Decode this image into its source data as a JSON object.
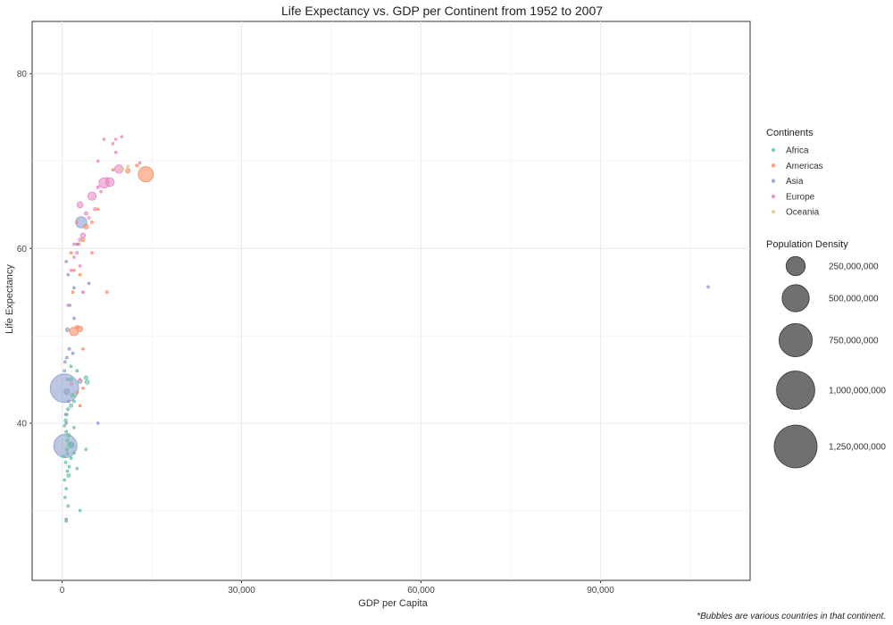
{
  "chart_data": {
    "type": "scatter",
    "title": "Life Expectancy vs. GDP per Continent from 1952 to 2007",
    "xlabel": "GDP per Capita",
    "ylabel": "Life Expectancy",
    "caption": "*Bubbles are various countries in that continent.",
    "xlim": [
      -5000,
      115000
    ],
    "ylim": [
      22,
      86
    ],
    "x_ticks": [
      0,
      30000,
      60000,
      90000
    ],
    "x_tick_labels": [
      "0",
      "30,000",
      "60,000",
      "90,000"
    ],
    "y_ticks": [
      40,
      60,
      80
    ],
    "y_tick_labels": [
      "40",
      "60",
      "80"
    ],
    "grid": true,
    "legend_position": "right",
    "color_legend": {
      "title": "Continents",
      "entries": [
        {
          "label": "Africa",
          "color": "#66c2a5"
        },
        {
          "label": "Americas",
          "color": "#fc8d62"
        },
        {
          "label": "Asia",
          "color": "#8da0cb"
        },
        {
          "label": "Europe",
          "color": "#e78ac3"
        },
        {
          "label": "Oceania",
          "color": "#e5c494"
        }
      ]
    },
    "size_legend": {
      "title": "Population Density",
      "entries": [
        {
          "label": "250,000,000",
          "value": 250000000
        },
        {
          "label": "500,000,000",
          "value": 500000000
        },
        {
          "label": "750,000,000",
          "value": 750000000
        },
        {
          "label": "1,000,000,000",
          "value": 1000000000
        },
        {
          "label": "1,250,000,000",
          "value": 1250000000
        }
      ]
    },
    "series": [
      {
        "name": "Africa",
        "color": "#66c2a5",
        "points": [
          [
            1500,
            45.0,
            8000000
          ],
          [
            4000,
            45.2,
            9000000
          ],
          [
            4200,
            44.7,
            12000000
          ],
          [
            1800,
            43.2,
            10000000
          ],
          [
            2000,
            42.5,
            5000000
          ],
          [
            1500,
            42.0,
            8000000
          ],
          [
            1000,
            41.6,
            6000000
          ],
          [
            800,
            41.0,
            4000000
          ],
          [
            600,
            40.3,
            7000000
          ],
          [
            400,
            39.7,
            3000000
          ],
          [
            700,
            39.0,
            5000000
          ],
          [
            1100,
            38.6,
            9000000
          ],
          [
            900,
            38.0,
            6000000
          ],
          [
            1300,
            37.5,
            12000000
          ],
          [
            800,
            37.0,
            7000000
          ],
          [
            2000,
            36.6,
            5000000
          ],
          [
            1500,
            36.0,
            4000000
          ],
          [
            600,
            35.5,
            3000000
          ],
          [
            900,
            34.5,
            4000000
          ],
          [
            1100,
            34.0,
            8000000
          ],
          [
            400,
            33.5,
            3000000
          ],
          [
            700,
            32.5,
            3000000
          ],
          [
            500,
            31.5,
            2000000
          ],
          [
            1000,
            30.5,
            2000000
          ],
          [
            3000,
            30.0,
            3000000
          ],
          [
            700,
            28.8,
            5000000
          ],
          [
            1500,
            46.5,
            4000000
          ],
          [
            2500,
            46.0,
            5000000
          ],
          [
            1200,
            35.0,
            2000000
          ],
          [
            2500,
            34.8,
            2000000
          ],
          [
            4000,
            37.0,
            2000000
          ],
          [
            2000,
            39.5,
            3000000
          ],
          [
            300,
            36.2,
            2000000
          ]
        ]
      },
      {
        "name": "Americas",
        "color": "#fc8d62",
        "points": [
          [
            14000,
            68.5,
            157000000
          ],
          [
            11000,
            68.9,
            14000000
          ],
          [
            12500,
            69.5,
            5000000
          ],
          [
            8500,
            69.0,
            4000000
          ],
          [
            5000,
            63.0,
            3000000
          ],
          [
            4000,
            62.5,
            15000000
          ],
          [
            3500,
            61.0,
            9000000
          ],
          [
            2800,
            60.5,
            5000000
          ],
          [
            1500,
            59.5,
            3000000
          ],
          [
            5000,
            59.5,
            3000000
          ],
          [
            3000,
            57.0,
            2000000
          ],
          [
            7500,
            55.0,
            2000000
          ],
          [
            3500,
            55.0,
            2000000
          ],
          [
            2500,
            51.0,
            8000000
          ],
          [
            3000,
            50.8,
            20000000
          ],
          [
            2000,
            50.5,
            52000000
          ],
          [
            3500,
            48.5,
            2000000
          ],
          [
            3500,
            44.0,
            2000000
          ],
          [
            2500,
            43.5,
            2000000
          ],
          [
            3000,
            42.0,
            2000000
          ],
          [
            6000,
            64.5,
            2000000
          ],
          [
            2000,
            57.5,
            2000000
          ],
          [
            1800,
            55.0,
            1500000
          ]
        ]
      },
      {
        "name": "Asia",
        "color": "#8da0cb",
        "points": [
          [
            400,
            44.0,
            556000000
          ],
          [
            550,
            37.4,
            372000000
          ],
          [
            3200,
            63.0,
            86000000
          ],
          [
            800,
            43.6,
            20000000
          ],
          [
            1500,
            37.5,
            22000000
          ],
          [
            900,
            50.7,
            10000000
          ],
          [
            1200,
            48.5,
            5000000
          ],
          [
            800,
            47.5,
            4000000
          ],
          [
            700,
            58.5,
            3000000
          ],
          [
            1000,
            57.0,
            3000000
          ],
          [
            1300,
            53.5,
            2000000
          ],
          [
            1800,
            48.0,
            2000000
          ],
          [
            500,
            47.0,
            2000000
          ],
          [
            400,
            46.0,
            2000000
          ],
          [
            900,
            45.0,
            3000000
          ],
          [
            1100,
            42.5,
            2000000
          ],
          [
            600,
            41.0,
            2000000
          ],
          [
            700,
            40.0,
            2000000
          ],
          [
            6000,
            40.0,
            2000000
          ],
          [
            900,
            36.5,
            2000000
          ],
          [
            108000,
            55.6,
            200000
          ],
          [
            4500,
            56.0,
            2000000
          ],
          [
            2000,
            55.5,
            2000000
          ],
          [
            2500,
            60.5,
            3000000
          ],
          [
            3000,
            44.8,
            12000000
          ],
          [
            700,
            29.0,
            3000000
          ],
          [
            2000,
            52.0,
            2000000
          ]
        ]
      },
      {
        "name": "Europe",
        "color": "#e78ac3",
        "points": [
          [
            7000,
            67.5,
            70000000
          ],
          [
            8000,
            67.6,
            51000000
          ],
          [
            9500,
            69.1,
            50000000
          ],
          [
            5000,
            66.0,
            47000000
          ],
          [
            3000,
            65.0,
            25000000
          ],
          [
            4000,
            64.0,
            9000000
          ],
          [
            5500,
            64.5,
            7000000
          ],
          [
            6000,
            67.0,
            5000000
          ],
          [
            6500,
            66.5,
            4000000
          ],
          [
            7500,
            68.0,
            3000000
          ],
          [
            8500,
            72.0,
            3000000
          ],
          [
            9000,
            72.5,
            2000000
          ],
          [
            10000,
            72.8,
            1000000
          ],
          [
            7000,
            72.5,
            1000000
          ],
          [
            3500,
            61.5,
            16000000
          ],
          [
            3000,
            61.0,
            8000000
          ],
          [
            2500,
            59.5,
            6000000
          ],
          [
            2000,
            59.0,
            3000000
          ],
          [
            3000,
            58.0,
            3000000
          ],
          [
            2000,
            60.5,
            2000000
          ],
          [
            1500,
            57.5,
            3000000
          ],
          [
            3500,
            55.0,
            2000000
          ],
          [
            1000,
            53.5,
            1000000
          ],
          [
            2500,
            63.0,
            2000000
          ],
          [
            4500,
            63.5,
            2000000
          ],
          [
            6000,
            70.0,
            2000000
          ],
          [
            9000,
            71.0,
            4000000
          ],
          [
            13000,
            69.8,
            1000000
          ],
          [
            3000,
            45.0,
            2000000
          ],
          [
            1500,
            44.5,
            1000000
          ]
        ]
      },
      {
        "name": "Oceania",
        "color": "#e5c494",
        "points": [
          [
            10000,
            69.1,
            8700000
          ],
          [
            11000,
            69.4,
            1500000
          ]
        ]
      }
    ]
  }
}
